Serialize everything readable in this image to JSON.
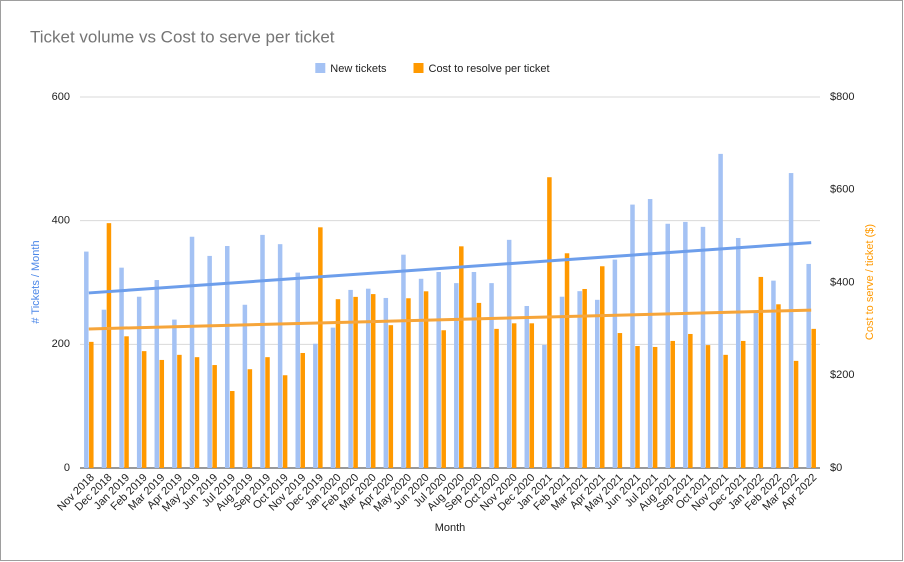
{
  "chart_data": {
    "type": "bar",
    "title": "Ticket volume vs Cost to serve per ticket",
    "x_label": "Month",
    "y_label": "# Tickets / Month",
    "y2_label": "Cost to serve / ticket ($)",
    "categories": [
      "Nov 2018",
      "Dec 2018",
      "Jan 2019",
      "Feb 2019",
      "Mar 2019",
      "Apr 2019",
      "May 2019",
      "Jun 2019",
      "Jul 2019",
      "Aug 2019",
      "Sep 2019",
      "Oct 2019",
      "Nov 2019",
      "Dec 2019",
      "Jan 2020",
      "Feb 2020",
      "Mar 2020",
      "Apr 2020",
      "May 2020",
      "Jun 2020",
      "Jul 2020",
      "Aug 2020",
      "Sep 2020",
      "Oct 2020",
      "Nov 2020",
      "Dec 2020",
      "Jan 2021",
      "Feb 2021",
      "Mar 2021",
      "Apr 2021",
      "May 2021",
      "Jun 2021",
      "Jul 2021",
      "Aug 2021",
      "Sep 2021",
      "Oct 2021",
      "Nov 2021",
      "Dec 2021",
      "Jan 2022",
      "Feb 2022",
      "Mar 2022",
      "Apr 2022"
    ],
    "series": [
      {
        "name": "New tickets",
        "color": "#a4c2f4",
        "trendline": true,
        "trendline_color": "#6d9eeb",
        "values": [
          350,
          256,
          324,
          277,
          304,
          240,
          374,
          343,
          359,
          264,
          377,
          362,
          316,
          201,
          227,
          288,
          290,
          275,
          345,
          306,
          317,
          299,
          317,
          299,
          369,
          262,
          199,
          277,
          286,
          272,
          337,
          426,
          435,
          395,
          398,
          390,
          508,
          372,
          254,
          303,
          477,
          330
        ]
      },
      {
        "name": "Cost to resolve per ticket",
        "color": "#ff9900",
        "axis": "y2",
        "trendline": true,
        "trendline_color": "#f6a53a",
        "values": [
          272,
          528,
          284,
          252,
          233,
          244,
          239,
          222,
          166,
          213,
          239,
          200,
          248,
          519,
          364,
          369,
          375,
          308,
          366,
          381,
          297,
          478,
          356,
          300,
          312,
          312,
          627,
          463,
          386,
          435,
          291,
          263,
          261,
          274,
          289,
          265,
          244,
          274,
          412,
          353,
          231,
          300
        ]
      }
    ],
    "ylim": [
      0,
      600
    ],
    "yticks": [
      0,
      200,
      400,
      600
    ],
    "y2lim": [
      0,
      800
    ],
    "y2ticks": [
      {
        "value": 0,
        "label": "$0"
      },
      {
        "value": 200,
        "label": "$200"
      },
      {
        "value": 400,
        "label": "$400"
      },
      {
        "value": 600,
        "label": "$600"
      },
      {
        "value": 800,
        "label": "$800"
      }
    ],
    "grid": true,
    "legend": "top"
  }
}
